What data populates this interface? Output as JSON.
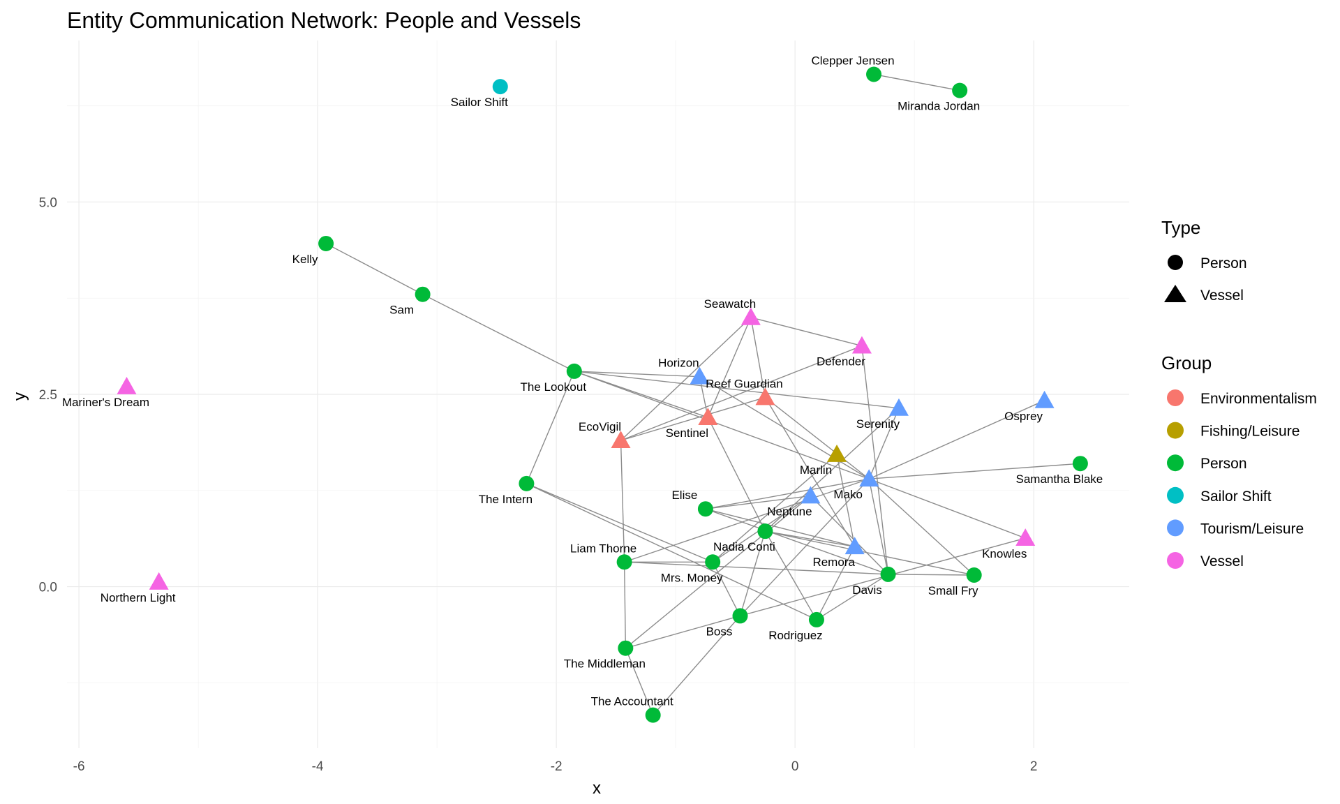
{
  "chart_data": {
    "type": "scatter",
    "title": "Entity Communication Network: People and Vessels",
    "xlabel": "x",
    "ylabel": "y",
    "xlim": [
      -6.1,
      2.8
    ],
    "ylim": [
      -2.1,
      7.1
    ],
    "x_ticks": [
      -6,
      -4,
      -2,
      0,
      2
    ],
    "x_tick_labels": [
      "-6",
      "-4",
      "-2",
      "0",
      "2"
    ],
    "y_ticks": [
      0,
      2.5,
      5
    ],
    "y_tick_labels": [
      "0.0",
      "2.5",
      "5.0"
    ],
    "grid": true,
    "legend_placement": "right",
    "legend_type": {
      "title": "Type",
      "items": [
        {
          "label": "Person",
          "shape": "circle"
        },
        {
          "label": "Vessel",
          "shape": "triangle"
        }
      ]
    },
    "legend_group": {
      "title": "Group",
      "items": [
        {
          "label": "Environmentalism",
          "color": "#F8766D"
        },
        {
          "label": "Fishing/Leisure",
          "color": "#B79F00"
        },
        {
          "label": "Person",
          "color": "#00BA38"
        },
        {
          "label": "Sailor Shift",
          "color": "#00BFC4"
        },
        {
          "label": "Tourism/Leisure",
          "color": "#619CFF"
        },
        {
          "label": "Vessel",
          "color": "#F564E3"
        }
      ]
    },
    "nodes": [
      {
        "name": "Sailor Shift",
        "x": -2.47,
        "y": 6.5,
        "type": "Person",
        "group": "Sailor Shift",
        "label_pos": "below"
      },
      {
        "name": "Clepper Jensen",
        "x": 0.66,
        "y": 6.66,
        "type": "Person",
        "group": "Person",
        "label_pos": "above"
      },
      {
        "name": "Miranda Jordan",
        "x": 1.38,
        "y": 6.45,
        "type": "Person",
        "group": "Person",
        "label_pos": "below"
      },
      {
        "name": "Kelly",
        "x": -3.93,
        "y": 4.46,
        "type": "Person",
        "group": "Person",
        "label_pos": "below"
      },
      {
        "name": "Sam",
        "x": -3.12,
        "y": 3.8,
        "type": "Person",
        "group": "Person",
        "label_pos": "below"
      },
      {
        "name": "Mariner's Dream",
        "x": -5.6,
        "y": 2.6,
        "type": "Vessel",
        "group": "Vessel",
        "label_pos": "below"
      },
      {
        "name": "Northern Light",
        "x": -5.33,
        "y": 0.06,
        "type": "Vessel",
        "group": "Vessel",
        "label_pos": "below"
      },
      {
        "name": "Seawatch",
        "x": -0.37,
        "y": 3.5,
        "type": "Vessel",
        "group": "Vessel",
        "label_pos": "above"
      },
      {
        "name": "Defender",
        "x": 0.56,
        "y": 3.13,
        "type": "Vessel",
        "group": "Vessel",
        "label_pos": "below"
      },
      {
        "name": "The Lookout",
        "x": -1.85,
        "y": 2.8,
        "type": "Person",
        "group": "Person",
        "label_pos": "below"
      },
      {
        "name": "Horizon",
        "x": -0.8,
        "y": 2.73,
        "type": "Vessel",
        "group": "Tourism/Leisure",
        "label_pos": "above"
      },
      {
        "name": "Reef Guardian",
        "x": -0.25,
        "y": 2.46,
        "type": "Vessel",
        "group": "Environmentalism",
        "label_pos": "above"
      },
      {
        "name": "Serenity",
        "x": 0.87,
        "y": 2.32,
        "type": "Vessel",
        "group": "Tourism/Leisure",
        "label_pos": "below"
      },
      {
        "name": "Osprey",
        "x": 2.09,
        "y": 2.42,
        "type": "Vessel",
        "group": "Tourism/Leisure",
        "label_pos": "below"
      },
      {
        "name": "Sentinel",
        "x": -0.73,
        "y": 2.2,
        "type": "Vessel",
        "group": "Environmentalism",
        "label_pos": "below"
      },
      {
        "name": "EcoVigil",
        "x": -1.46,
        "y": 1.9,
        "type": "Vessel",
        "group": "Environmentalism",
        "label_pos": "above"
      },
      {
        "name": "Marlin",
        "x": 0.35,
        "y": 1.72,
        "type": "Vessel",
        "group": "Fishing/Leisure",
        "label_pos": "below"
      },
      {
        "name": "Samantha Blake",
        "x": 2.39,
        "y": 1.6,
        "type": "Person",
        "group": "Person",
        "label_pos": "below"
      },
      {
        "name": "Mako",
        "x": 0.62,
        "y": 1.4,
        "type": "Vessel",
        "group": "Tourism/Leisure",
        "label_pos": "below"
      },
      {
        "name": "The Intern",
        "x": -2.25,
        "y": 1.34,
        "type": "Person",
        "group": "Person",
        "label_pos": "below"
      },
      {
        "name": "Neptune",
        "x": 0.13,
        "y": 1.18,
        "type": "Vessel",
        "group": "Tourism/Leisure",
        "label_pos": "below"
      },
      {
        "name": "Elise",
        "x": -0.75,
        "y": 1.01,
        "type": "Person",
        "group": "Person",
        "label_pos": "above"
      },
      {
        "name": "Nadia Conti",
        "x": -0.25,
        "y": 0.72,
        "type": "Person",
        "group": "Person",
        "label_pos": "below"
      },
      {
        "name": "Knowles",
        "x": 1.93,
        "y": 0.63,
        "type": "Vessel",
        "group": "Vessel",
        "label_pos": "below"
      },
      {
        "name": "Remora",
        "x": 0.5,
        "y": 0.52,
        "type": "Vessel",
        "group": "Tourism/Leisure",
        "label_pos": "below"
      },
      {
        "name": "Liam Thorne",
        "x": -1.43,
        "y": 0.32,
        "type": "Person",
        "group": "Person",
        "label_pos": "above"
      },
      {
        "name": "Mrs. Money",
        "x": -0.69,
        "y": 0.32,
        "type": "Person",
        "group": "Person",
        "label_pos": "below"
      },
      {
        "name": "Davis",
        "x": 0.78,
        "y": 0.16,
        "type": "Person",
        "group": "Person",
        "label_pos": "below"
      },
      {
        "name": "Small Fry",
        "x": 1.5,
        "y": 0.15,
        "type": "Person",
        "group": "Person",
        "label_pos": "below"
      },
      {
        "name": "Boss",
        "x": -0.46,
        "y": -0.38,
        "type": "Person",
        "group": "Person",
        "label_pos": "below"
      },
      {
        "name": "Rodriguez",
        "x": 0.18,
        "y": -0.43,
        "type": "Person",
        "group": "Person",
        "label_pos": "below"
      },
      {
        "name": "The Middleman",
        "x": -1.42,
        "y": -0.8,
        "type": "Person",
        "group": "Person",
        "label_pos": "below"
      },
      {
        "name": "The Accountant",
        "x": -1.19,
        "y": -1.67,
        "type": "Person",
        "group": "Person",
        "label_pos": "above"
      }
    ],
    "edges": [
      [
        "Clepper Jensen",
        "Miranda Jordan"
      ],
      [
        "Kelly",
        "Sam"
      ],
      [
        "Sam",
        "The Lookout"
      ],
      [
        "The Lookout",
        "Sentinel"
      ],
      [
        "The Lookout",
        "Serenity"
      ],
      [
        "The Lookout",
        "Horizon"
      ],
      [
        "The Lookout",
        "Mako"
      ],
      [
        "The Lookout",
        "The Intern"
      ],
      [
        "The Intern",
        "Mrs. Money"
      ],
      [
        "The Intern",
        "Rodriguez"
      ],
      [
        "Seawatch",
        "Defender"
      ],
      [
        "Seawatch",
        "EcoVigil"
      ],
      [
        "Seawatch",
        "Sentinel"
      ],
      [
        "Seawatch",
        "Reef Guardian"
      ],
      [
        "Defender",
        "EcoVigil"
      ],
      [
        "Defender",
        "Davis"
      ],
      [
        "Horizon",
        "Sentinel"
      ],
      [
        "Horizon",
        "Mako"
      ],
      [
        "Reef Guardian",
        "EcoVigil"
      ],
      [
        "Reef Guardian",
        "Mako"
      ],
      [
        "Reef Guardian",
        "Remora"
      ],
      [
        "Sentinel",
        "Nadia Conti"
      ],
      [
        "EcoVigil",
        "Liam Thorne"
      ],
      [
        "Marlin",
        "Remora"
      ],
      [
        "Marlin",
        "Mrs. Money"
      ],
      [
        "Serenity",
        "Nadia Conti"
      ],
      [
        "Serenity",
        "Mako"
      ],
      [
        "Osprey",
        "Mako"
      ],
      [
        "Mako",
        "Samantha Blake"
      ],
      [
        "Mako",
        "Knowles"
      ],
      [
        "Mako",
        "Elise"
      ],
      [
        "Mako",
        "Davis"
      ],
      [
        "Mako",
        "Small Fry"
      ],
      [
        "Mako",
        "Boss"
      ],
      [
        "Mako",
        "Liam Thorne"
      ],
      [
        "Neptune",
        "Elise"
      ],
      [
        "Neptune",
        "Mrs. Money"
      ],
      [
        "Neptune",
        "Davis"
      ],
      [
        "Neptune",
        "The Middleman"
      ],
      [
        "Elise",
        "Remora"
      ],
      [
        "Elise",
        "Davis"
      ],
      [
        "Nadia Conti",
        "Small Fry"
      ],
      [
        "Nadia Conti",
        "Boss"
      ],
      [
        "Nadia Conti",
        "Rodriguez"
      ],
      [
        "Nadia Conti",
        "Remora"
      ],
      [
        "Knowles",
        "Boss"
      ],
      [
        "Remora",
        "Rodriguez"
      ],
      [
        "Liam Thorne",
        "Mrs. Money"
      ],
      [
        "Liam Thorne",
        "Davis"
      ],
      [
        "Liam Thorne",
        "The Middleman"
      ],
      [
        "Mrs. Money",
        "Boss"
      ],
      [
        "Boss",
        "The Middleman"
      ],
      [
        "Boss",
        "The Accountant"
      ],
      [
        "Rodriguez",
        "Davis"
      ],
      [
        "Davis",
        "Small Fry"
      ],
      [
        "The Middleman",
        "The Accountant"
      ]
    ]
  }
}
